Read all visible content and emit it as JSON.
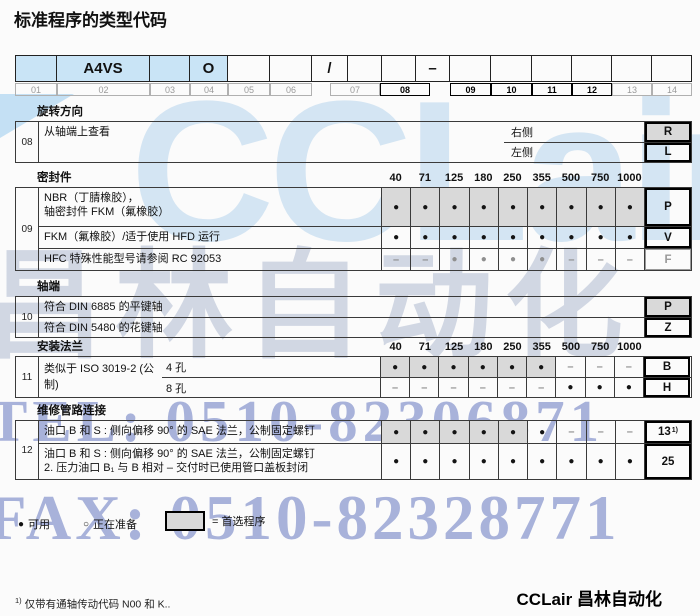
{
  "title": "标准程序的类型代码",
  "code_row": {
    "cells": [
      "",
      "A4VS",
      "",
      "O",
      "",
      "",
      "/",
      "",
      "",
      "–",
      "",
      "",
      "",
      "",
      "",
      ""
    ],
    "labels": [
      "01",
      "02",
      "03",
      "04",
      "05",
      "06",
      "07",
      "08",
      "09",
      "10",
      "11",
      "12",
      "13",
      "14"
    ]
  },
  "sizes": [
    "40",
    "71",
    "125",
    "180",
    "250",
    "355",
    "500",
    "750",
    "1000"
  ],
  "sections": {
    "rotation": {
      "id": "08",
      "title": "旋转方向",
      "desc": "从轴端上查看",
      "options": [
        {
          "label": "右侧",
          "code": "R"
        },
        {
          "label": "左侧",
          "code": "L"
        }
      ]
    },
    "seals": {
      "id": "09",
      "title": "密封件",
      "rows": [
        {
          "desc1": "NBR（丁腈橡胶），",
          "desc2": "轴密封件 FKM（氟橡胶）",
          "code": "P",
          "cells": [
            "●",
            "●",
            "●",
            "●",
            "●",
            "●",
            "●",
            "●",
            "●"
          ],
          "shaded": [
            1,
            1,
            1,
            1,
            1,
            1,
            1,
            1,
            1
          ]
        },
        {
          "desc1": "FKM（氟橡胶）/适于使用 HFD 运行",
          "code": "V",
          "cells": [
            "●",
            "●",
            "●",
            "●",
            "●",
            "●",
            "●",
            "●",
            "●"
          ]
        },
        {
          "desc1": "HFC 特殊性能型号请参阅 RC 92053",
          "code": "F",
          "cells": [
            "–",
            "–",
            "●",
            "●",
            "●",
            "●",
            "–",
            "–",
            "–"
          ]
        }
      ]
    },
    "shaft": {
      "id": "10",
      "title": "轴端",
      "rows": [
        {
          "desc": "符合 DIN 6885 的平键轴",
          "code": "P"
        },
        {
          "desc": "符合 DIN 5480 的花键轴",
          "code": "Z"
        }
      ]
    },
    "flange": {
      "id": "11",
      "title": "安装法兰",
      "desc": "类似于 ISO 3019-2 (公制)",
      "rows": [
        {
          "sub": "4 孔",
          "code": "B",
          "cells": [
            "●",
            "●",
            "●",
            "●",
            "●",
            "●",
            "–",
            "–",
            "–"
          ],
          "shaded": [
            1,
            1,
            1,
            1,
            1,
            1,
            0,
            0,
            0
          ]
        },
        {
          "sub": "8 孔",
          "code": "H",
          "cells": [
            "–",
            "–",
            "–",
            "–",
            "–",
            "–",
            "●",
            "●",
            "●"
          ]
        }
      ]
    },
    "service": {
      "id": "12",
      "title": "维修管路连接",
      "rows": [
        {
          "desc1": "油口 B 和 S : 侧向偏移 90° 的 SAE 法兰，公制固定螺钉",
          "code": "13",
          "code_sup": "1)",
          "cells": [
            "●",
            "●",
            "●",
            "●",
            "●",
            "●",
            "–",
            "–",
            "–"
          ],
          "shaded": [
            1,
            1,
            1,
            1,
            1,
            0,
            0,
            0,
            0
          ]
        },
        {
          "desc1": "油口 B 和 S : 侧向偏移 90° 的 SAE 法兰，公制固定螺钉",
          "desc2": "2. 压力油口 B₁ 与 B 相对 – 交付时已使用管口盖板封闭",
          "code": "25",
          "cells": [
            "●",
            "●",
            "●",
            "●",
            "●",
            "●",
            "●",
            "●",
            "●"
          ]
        }
      ]
    }
  },
  "legend": {
    "dot": "●",
    "available": "可用",
    "circle": "○",
    "in_preparation": "正在准备",
    "equals_preferred": "= 首选程序"
  },
  "footnote": {
    "sup": "1)",
    "text": "仅带有通轴传动代码 N00 和 K.."
  },
  "brand": "CCLair 昌林自动化",
  "watermarks": {
    "line1": "CCLair",
    "line2": "昌林自动化",
    "tel": "TEL: 0510-82306871",
    "fax": "FAX: 0510-82328771"
  },
  "colors": {
    "highlight_blue": "#c9e4f6",
    "preferred_gray": "#d9d9d9",
    "watermark_blue": "#566aba"
  }
}
